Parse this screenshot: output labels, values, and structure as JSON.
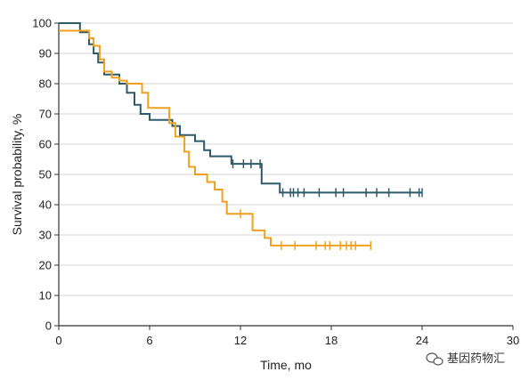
{
  "chart_data": {
    "type": "line",
    "step": true,
    "title": "",
    "xlabel": "Time, mo",
    "ylabel": "Survival probability, %",
    "xlim": [
      0,
      30
    ],
    "ylim": [
      0,
      100
    ],
    "xticks": [
      0,
      6,
      12,
      18,
      24,
      30
    ],
    "yticks": [
      0,
      10,
      20,
      30,
      40,
      50,
      60,
      70,
      80,
      90,
      100
    ],
    "grid": true,
    "legend": "none",
    "series": [
      {
        "color": "#2e5b6a",
        "x": [
          0,
          1.4,
          2.0,
          2.3,
          2.6,
          3.0,
          3.3,
          4.0,
          4.5,
          5.0,
          5.4,
          6.0,
          7.5,
          8.0,
          9.0,
          9.6,
          10.0,
          11.0,
          11.4,
          13.4,
          13.8,
          14.6,
          24.0
        ],
        "y": [
          100,
          97,
          93,
          90,
          87,
          83,
          83,
          80,
          77,
          73,
          70,
          68,
          66,
          63,
          61,
          58,
          56,
          56,
          53.5,
          47,
          47,
          44,
          44
        ],
        "censor_x": [
          11.5,
          12.2,
          12.7,
          13.3,
          14.8,
          15.3,
          15.5,
          15.8,
          16.2,
          17.2,
          18.3,
          18.8,
          20.3,
          21.0,
          21.8,
          23.2,
          23.8,
          24.0
        ],
        "censor_y": [
          53.5,
          53.5,
          53.5,
          53.5,
          44,
          44,
          44,
          44,
          44,
          44,
          44,
          44,
          44,
          44,
          44,
          44,
          44,
          44
        ]
      },
      {
        "color": "#f0a020",
        "x": [
          0,
          2.0,
          2.3,
          2.7,
          3.0,
          3.5,
          4.0,
          4.5,
          5.5,
          5.9,
          7.3,
          7.7,
          8.3,
          8.6,
          9.0,
          9.8,
          10.3,
          10.8,
          11.1,
          12.3,
          12.8,
          13.6,
          14.0,
          20.6
        ],
        "y": [
          97.5,
          95,
          92.5,
          88,
          84,
          82,
          81,
          80,
          77,
          72,
          67,
          62.5,
          57.5,
          52.5,
          50,
          47.5,
          45,
          41,
          37,
          37,
          31.5,
          29,
          26.5,
          26.5
        ],
        "censor_x": [
          12.0,
          14.7,
          15.6,
          17.0,
          17.6,
          17.9,
          18.6,
          19.0,
          19.3,
          19.6,
          20.6
        ],
        "censor_y": [
          37,
          26.5,
          26.5,
          26.5,
          26.5,
          26.5,
          26.5,
          26.5,
          26.5,
          26.5,
          26.5
        ]
      }
    ]
  },
  "watermark": {
    "text": "基因药物汇",
    "icon": "wechat-icon"
  }
}
